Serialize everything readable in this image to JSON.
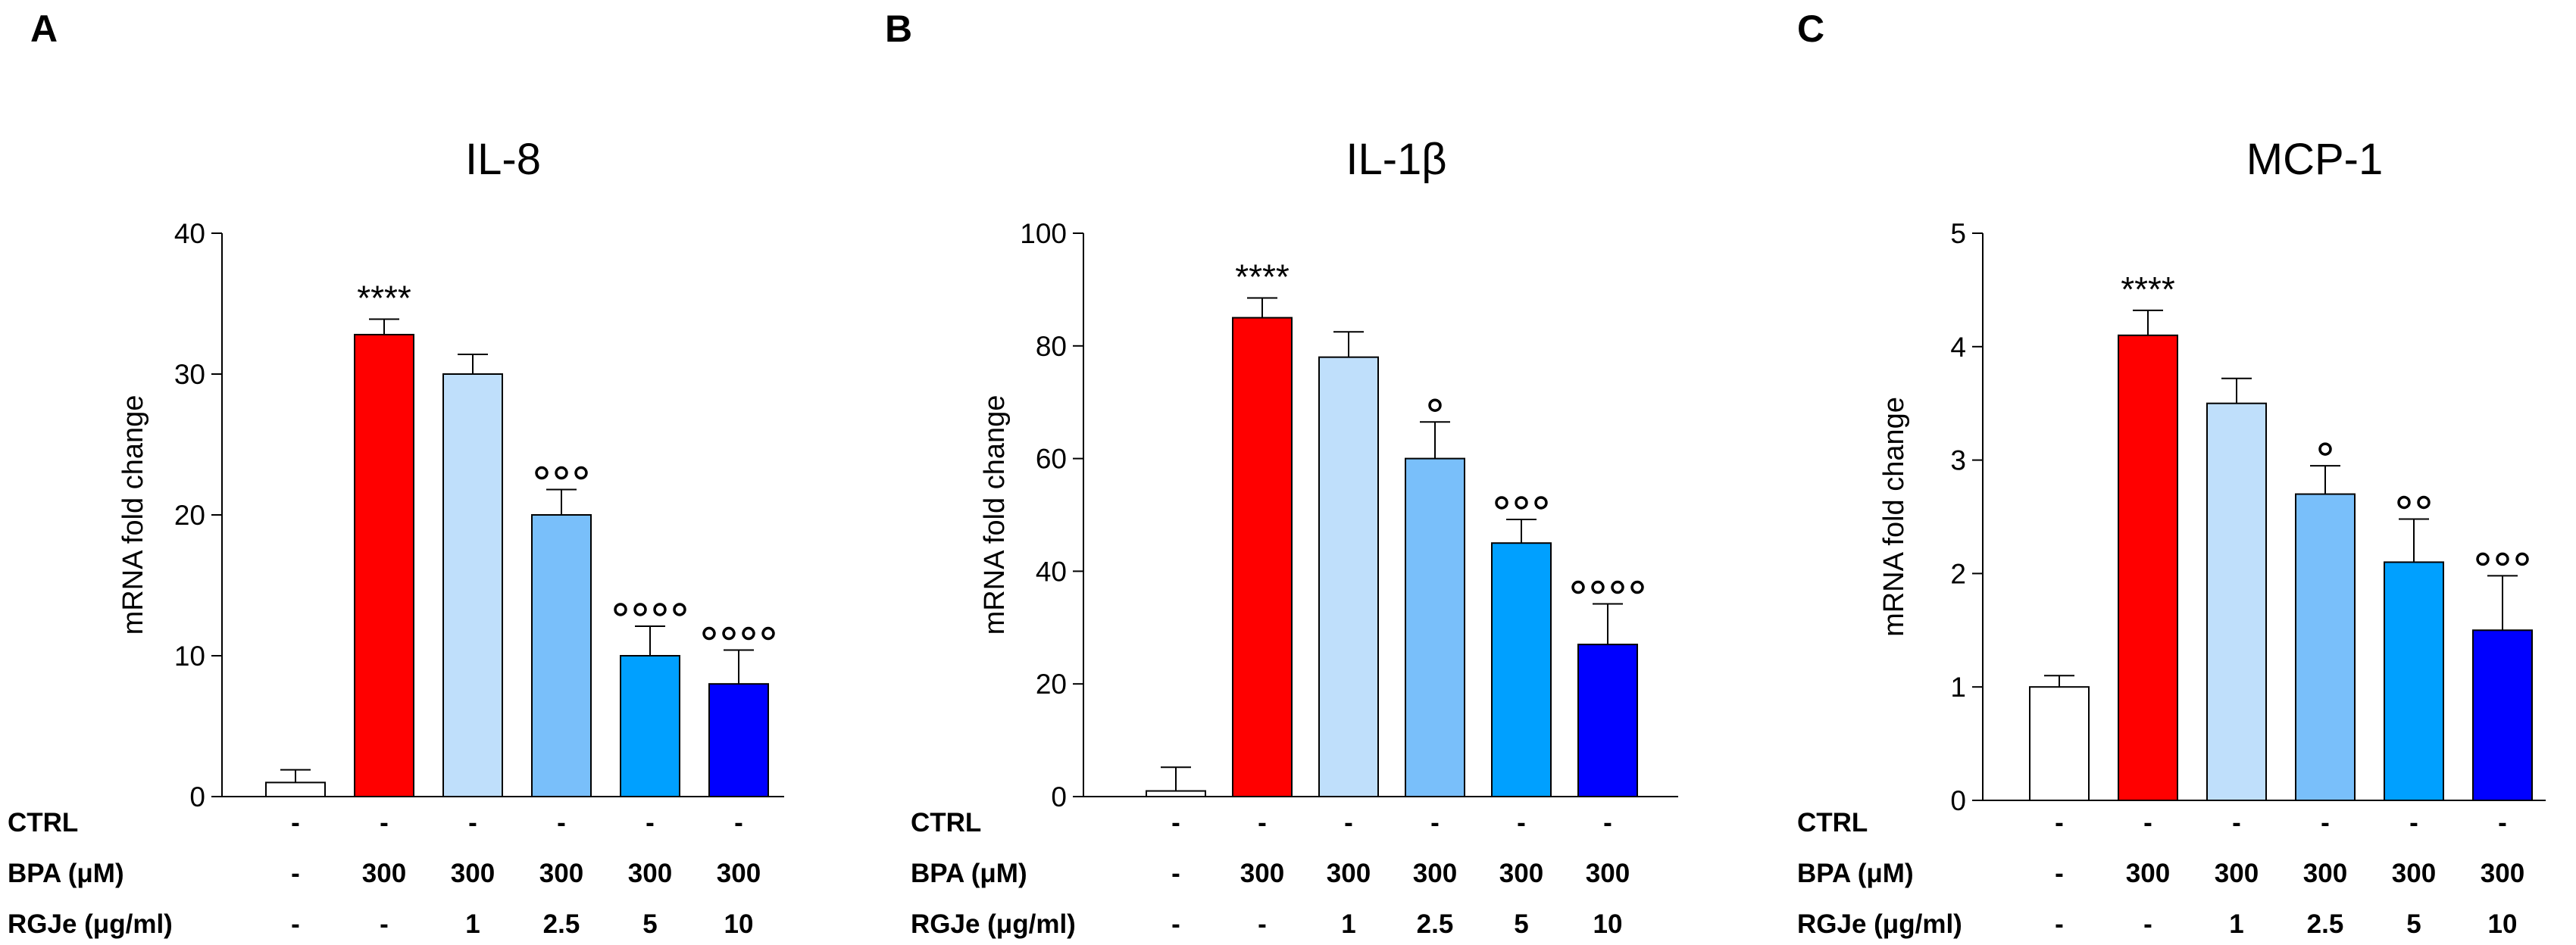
{
  "colors": {
    "ctrl": "#ffffff",
    "bpa": "#ff0000",
    "rgje_1": "#bfdffb",
    "rgje_2_5": "#79bffa",
    "rgje_5": "#00a0ff",
    "rgje_10": "#0000ff"
  },
  "conditions": {
    "row_labels": [
      "CTRL",
      "BPA (μM)",
      "RGJe (μg/ml)"
    ],
    "ctrl": [
      "-",
      "-",
      "-",
      "-",
      "-",
      "-"
    ],
    "bpa": [
      "-",
      "300",
      "300",
      "300",
      "300",
      "300"
    ],
    "rgje": [
      "-",
      "-",
      "1",
      "2.5",
      "5",
      "10"
    ]
  },
  "chart_data": [
    {
      "panel": "A",
      "type": "bar",
      "title": "IL-8",
      "ylabel": "mRNA fold change",
      "ylim": [
        0,
        40
      ],
      "yticks": [
        "0",
        "10",
        "20",
        "30",
        "40"
      ],
      "values": [
        1,
        32.8,
        30,
        20,
        10,
        8
      ],
      "errors": [
        0.9,
        1.1,
        1.4,
        1.8,
        2.1,
        2.4
      ],
      "significance": [
        "",
        "****",
        "",
        "ooo",
        "oooo",
        "oooo"
      ]
    },
    {
      "panel": "B",
      "type": "bar",
      "title": "IL-1β",
      "ylabel": "mRNA fold change",
      "ylim": [
        0,
        100
      ],
      "yticks": [
        "0",
        "20",
        "40",
        "60",
        "80",
        "100"
      ],
      "values": [
        1,
        85,
        78,
        60,
        45,
        27
      ],
      "errors": [
        4.2,
        3.5,
        4.5,
        6.5,
        4.2,
        7.2
      ],
      "significance": [
        "",
        "****",
        "",
        "o",
        "ooo",
        "oooo"
      ]
    },
    {
      "panel": "C",
      "type": "bar",
      "title": "MCP-1",
      "ylabel": "mRNA fold change",
      "ylim": [
        0,
        5
      ],
      "yticks": [
        "0",
        "1",
        "2",
        "3",
        "4",
        "5"
      ],
      "values": [
        1,
        4.1,
        3.5,
        2.7,
        2.1,
        1.5
      ],
      "errors": [
        0.1,
        0.22,
        0.22,
        0.25,
        0.38,
        0.48
      ],
      "significance": [
        "",
        "****",
        "",
        "o",
        "oo",
        "ooo"
      ]
    }
  ]
}
